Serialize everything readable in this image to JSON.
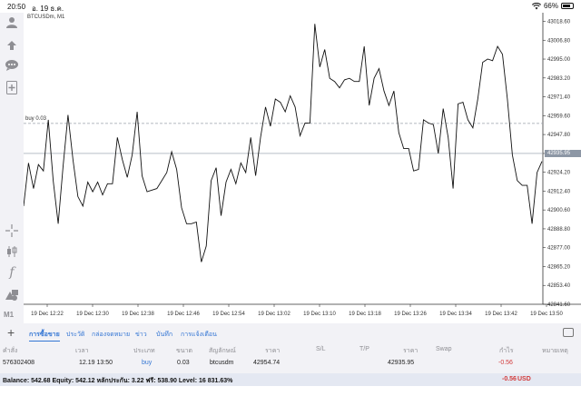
{
  "status_bar": {
    "time": "20:50",
    "date": "อ. 19 ธ.ค.",
    "battery": "66%"
  },
  "sidebar": {
    "icons": [
      "account-icon",
      "trade-icon",
      "chat-icon",
      "new-document-icon",
      "crosshair-icon",
      "candles-icon",
      "indicator-icon",
      "objects-icon"
    ],
    "timeframe": "M1"
  },
  "chart": {
    "symbol_label": "BTCUSDm, M1",
    "buy_line_label": "buy 0.03",
    "current_price_tag": "42935.95"
  },
  "chart_data": {
    "type": "line",
    "x_ticks": [
      "19 Dec 12:22",
      "19 Dec 12:30",
      "19 Dec 12:38",
      "19 Dec 12:46",
      "19 Dec 12:54",
      "19 Dec 13:02",
      "19 Dec 13:10",
      "19 Dec 13:18",
      "19 Dec 13:26",
      "19 Dec 13:34",
      "19 Dec 13:42",
      "19 Dec 13:50"
    ],
    "y_ticks": [
      "43018.60",
      "43006.80",
      "42995.00",
      "42983.20",
      "42971.40",
      "42959.60",
      "42947.80",
      "42935.95",
      "42924.20",
      "42912.40",
      "42900.60",
      "42888.80",
      "42877.00",
      "42865.20",
      "42853.40",
      "42841.60"
    ],
    "ylim": [
      42841.6,
      43024.0
    ],
    "buy_level": 42954.74,
    "current_price": 42935.95,
    "series": [
      {
        "values": [
          42903,
          42930,
          42914,
          42929,
          42925,
          42957,
          42919,
          42892,
          42928,
          42960,
          42932,
          42909,
          42903,
          42918,
          42912,
          42918,
          42910,
          42917,
          42917,
          42946,
          42932,
          42921,
          42935,
          42962,
          42922,
          42912,
          42913,
          42914,
          42919,
          42924,
          42937,
          42926,
          42902,
          42892,
          42892,
          42893,
          42868,
          42878,
          42919,
          42927,
          42897,
          42918,
          42926,
          42917,
          42930,
          42924,
          42946,
          42922,
          42946,
          42965,
          42953,
          42970,
          42968,
          42962,
          42972,
          42965,
          42947,
          42955,
          42955,
          43017,
          42990,
          43001,
          42983,
          42981,
          42977,
          42982,
          42983,
          42981,
          42981,
          43003,
          42966,
          42983,
          42989,
          42975,
          42966,
          42975,
          42949,
          42939,
          42939,
          42925,
          42926,
          42957,
          42955,
          42954,
          42936,
          42964,
          42946,
          42914,
          42967,
          42968,
          42957,
          42952,
          42970,
          42993,
          42995,
          42994,
          43003,
          42998,
          42970,
          42935,
          42919,
          42916,
          42916,
          42892,
          42924,
          42931
        ]
      }
    ]
  },
  "tabs": [
    "การซื้อขาย",
    "ประวัติ",
    "กล่องจดหมาย",
    "ข่าว",
    "บันทึก",
    "การแจ้งเตือน"
  ],
  "table": {
    "headers": [
      "คำสั่ง",
      "เวลา",
      "ประเภท",
      "ขนาด",
      "สัญลักษณ์",
      "ราคา",
      "S/L",
      "T/P",
      "ราคา",
      "Swap",
      "กำไร",
      "หมายเหตุ"
    ],
    "row": {
      "order": "576302408",
      "time": "12.19 13:50",
      "type": "buy",
      "size": "0.03",
      "symbol": "btcusdm",
      "open_price": "42954.74",
      "sl": "",
      "tp": "",
      "current_price": "42935.95",
      "swap": "",
      "profit": "-0.56",
      "comment": ""
    }
  },
  "balance": {
    "text": "Balance: 542.68 Equity: 542.12 หลักประกัน: 3.22 ฟรี: 538.90 Level: 16 831.63%",
    "profit": "-0.56",
    "currency": "USD"
  },
  "colors": {
    "price_tag": "#8d97a5",
    "tab_text": "#3476d4",
    "loss": "#d23b3b",
    "buy": "#3476d4",
    "balance_bg": "#e4e8f2"
  }
}
